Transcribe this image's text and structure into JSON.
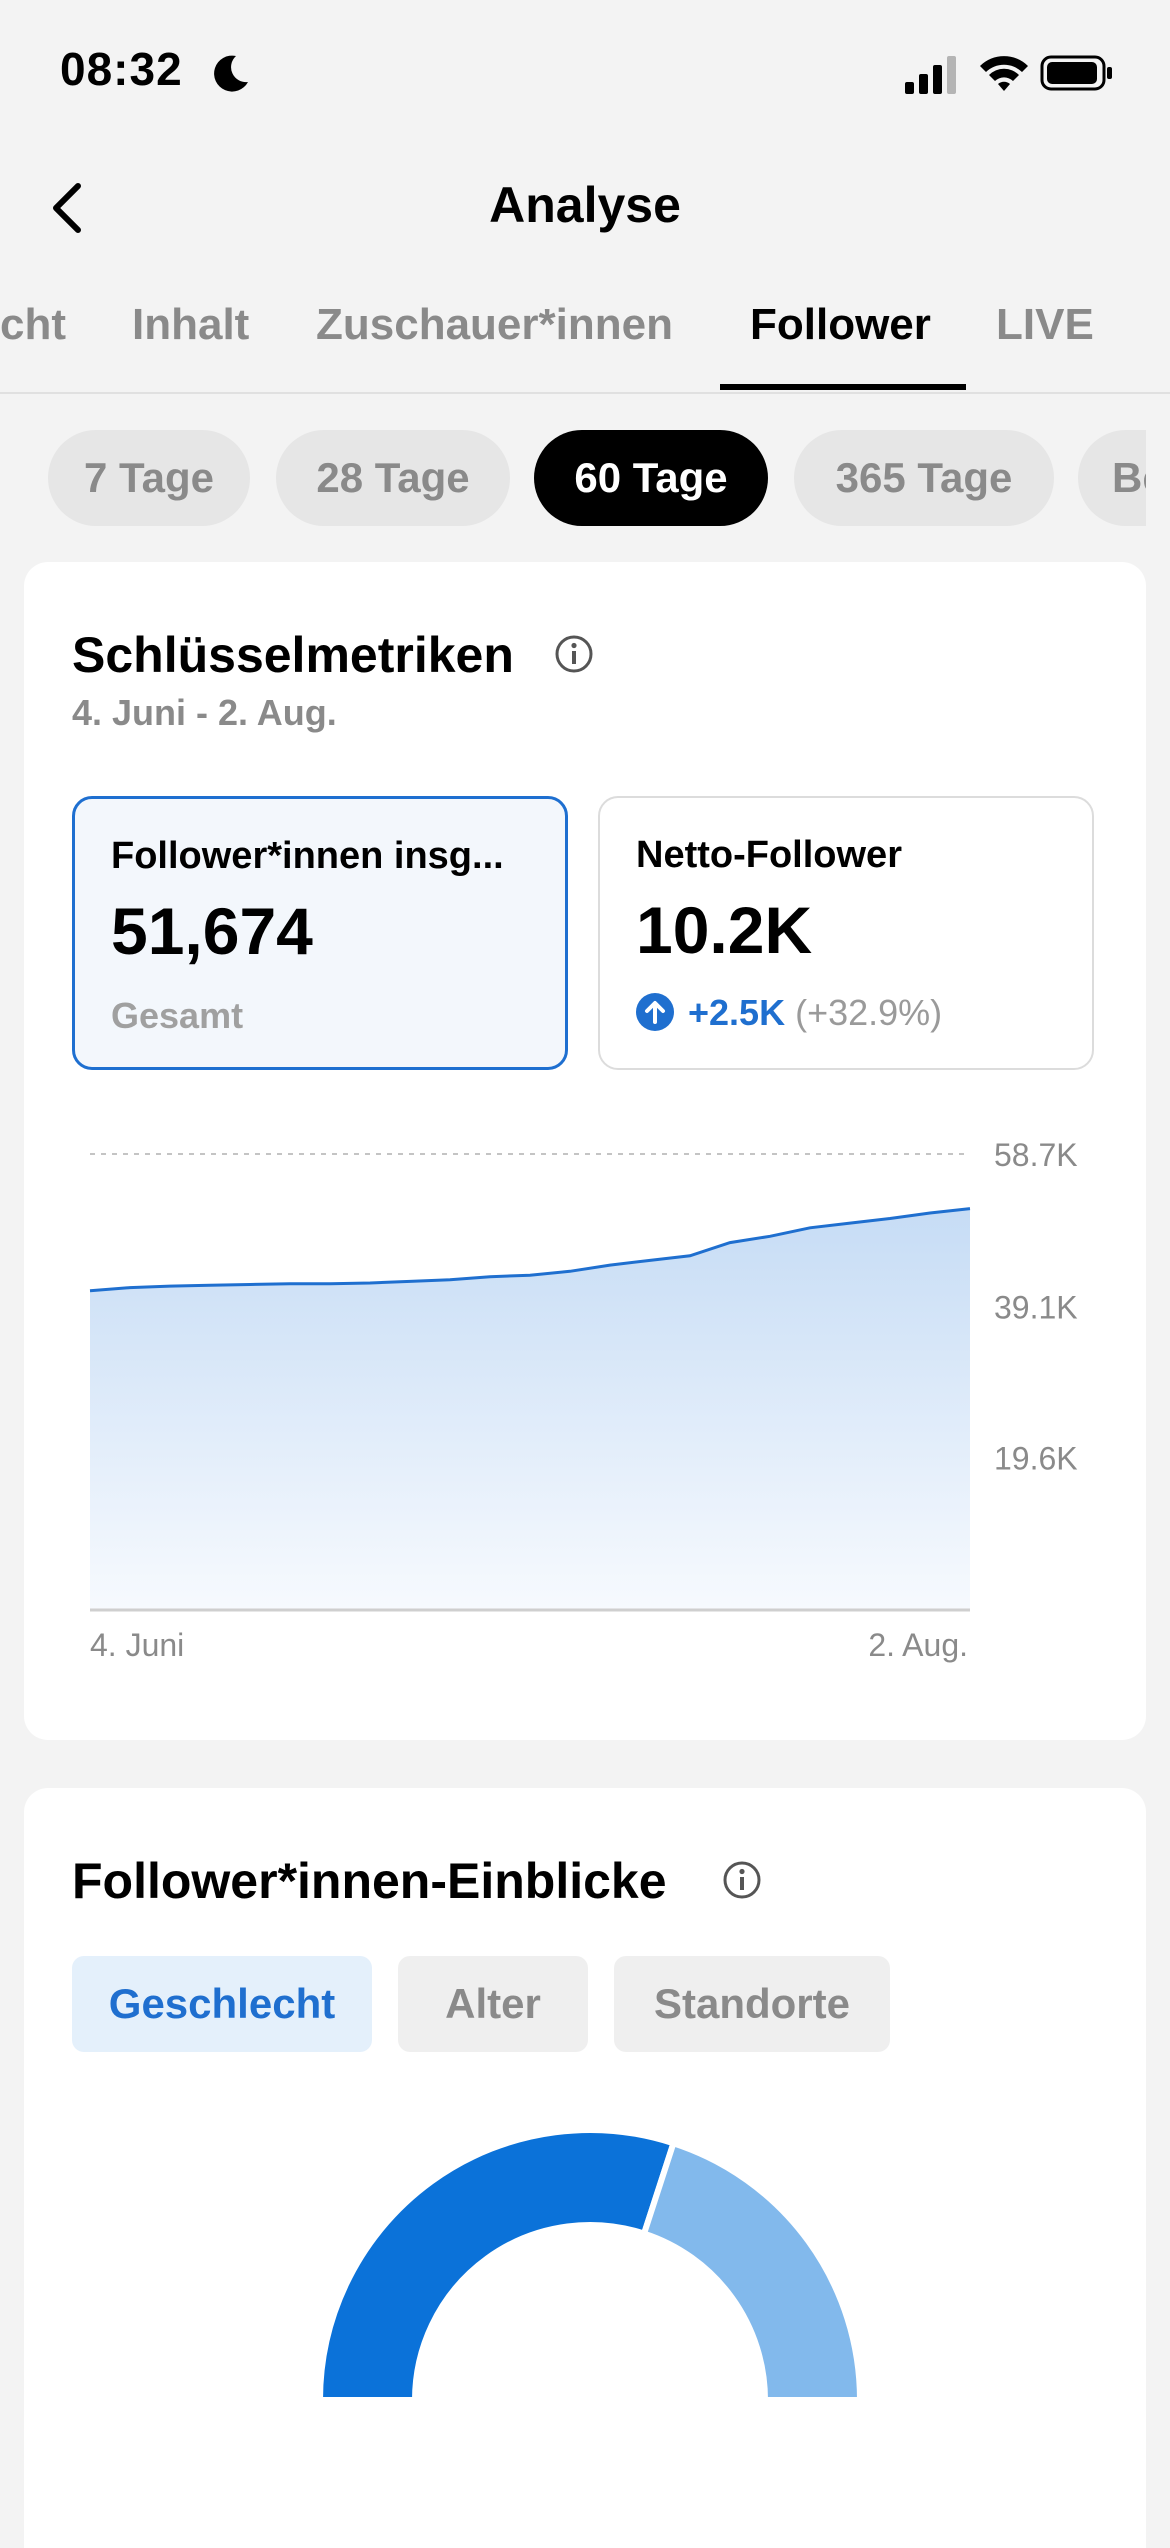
{
  "status_bar": {
    "time": "08:32"
  },
  "header": {
    "title": "Analyse"
  },
  "tabs": [
    {
      "label": "cht"
    },
    {
      "label": "Inhalt"
    },
    {
      "label": "Zuschauer*innen"
    },
    {
      "label": "Follower",
      "active": true
    },
    {
      "label": "LIVE"
    }
  ],
  "periods": [
    {
      "label": "7 Tage"
    },
    {
      "label": "28 Tage"
    },
    {
      "label": "60 Tage",
      "active": true
    },
    {
      "label": "365 Tage"
    },
    {
      "label": "Be"
    }
  ],
  "key_metrics": {
    "title": "Schlüsselmetriken",
    "date_range": "4. Juni - 2. Aug.",
    "total": {
      "label": "Follower*innen insg...",
      "value": "51,674",
      "sub": "Gesamt"
    },
    "net": {
      "label": "Netto-Follower",
      "value": "10.2K",
      "change_abs": "+2.5K",
      "change_pct": "(+32.9%)"
    }
  },
  "chart_data": {
    "type": "area",
    "x_start_label": "4. Juni",
    "x_end_label": "2. Aug.",
    "y_tick_labels": [
      "58.7K",
      "39.1K",
      "19.6K"
    ],
    "y_ticks": [
      58700,
      39100,
      19600
    ],
    "ylim": [
      0,
      58700
    ],
    "values": [
      41100,
      41500,
      41700,
      41800,
      41900,
      42000,
      42000,
      42100,
      42300,
      42500,
      42900,
      43100,
      43600,
      44400,
      45000,
      45600,
      47300,
      48100,
      49200,
      49800,
      50400,
      51100,
      51674
    ],
    "color": "#1f6fcf",
    "grid": true
  },
  "insights": {
    "title": "Follower*innen-Einblicke",
    "tabs": [
      {
        "label": "Geschlecht",
        "active": true
      },
      {
        "label": "Alter"
      },
      {
        "label": "Standorte"
      }
    ],
    "gender_chart": {
      "type": "pie",
      "slices": [
        {
          "share": 0.6,
          "color": "#0b72d9"
        },
        {
          "share": 0.4,
          "color": "#82b9ec"
        }
      ]
    }
  }
}
